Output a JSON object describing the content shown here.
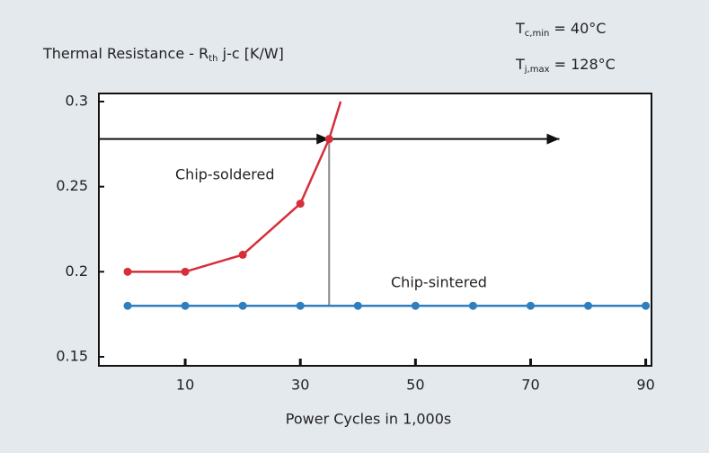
{
  "chart_data": {
    "type": "line",
    "title": [
      "Thermal Resistance - R",
      "th",
      " j-c [K/W]"
    ],
    "conditions": [
      [
        "T",
        "c,min",
        " = 40°C"
      ],
      [
        "T",
        "j,max",
        " = 128°C"
      ]
    ],
    "xlabel": "Power Cycles in 1,000s",
    "xlim": [
      -5,
      91
    ],
    "xticks": [
      10,
      30,
      50,
      70,
      90
    ],
    "ylim": [
      0.15,
      0.3
    ],
    "yticks": [
      0.15,
      0.2,
      0.25,
      0.3
    ],
    "series": [
      {
        "name": "Chip-soldered",
        "color": "#d62f3a",
        "x": [
          0,
          10,
          20,
          30,
          35,
          37
        ],
        "values": [
          0.2,
          0.2,
          0.21,
          0.24,
          0.278,
          0.3
        ]
      },
      {
        "name": "Chip-sintered",
        "color": "#2f7fbf",
        "x": [
          0,
          10,
          20,
          30,
          40,
          50,
          60,
          70,
          80,
          90
        ],
        "values": [
          0.18,
          0.18,
          0.18,
          0.18,
          0.18,
          0.18,
          0.18,
          0.18,
          0.18,
          0.18
        ]
      }
    ],
    "crossover": {
      "x": 35,
      "y": 0.278
    },
    "arrow_end": 75
  }
}
